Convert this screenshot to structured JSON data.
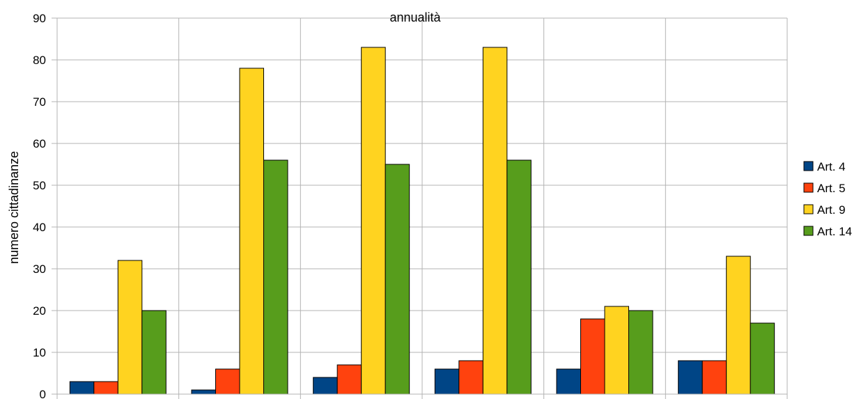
{
  "chart_data": {
    "type": "bar",
    "title": "annualità",
    "xlabel": "",
    "ylabel": "numero cittadinanze",
    "ylim": [
      0,
      90
    ],
    "yticks": [
      0,
      10,
      20,
      30,
      40,
      50,
      60,
      70,
      80,
      90
    ],
    "categories": [
      "",
      "",
      "",
      "",
      "",
      ""
    ],
    "series": [
      {
        "name": "Art. 4",
        "color": "#004586",
        "values": [
          3,
          1,
          4,
          6,
          6,
          8
        ]
      },
      {
        "name": "Art. 5",
        "color": "#ff420e",
        "values": [
          3,
          6,
          7,
          8,
          18,
          8
        ]
      },
      {
        "name": "Art. 9",
        "color": "#ffd320",
        "values": [
          32,
          78,
          83,
          83,
          21,
          33
        ]
      },
      {
        "name": "Art. 14",
        "color": "#579d1c",
        "values": [
          20,
          56,
          55,
          56,
          20,
          17
        ]
      }
    ],
    "grid": true,
    "legend_position": "right"
  }
}
